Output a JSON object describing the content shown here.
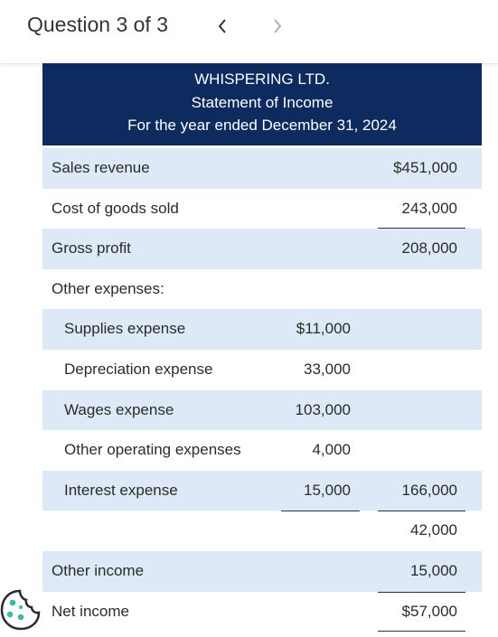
{
  "header": {
    "title": "Question 3 of 3",
    "prev_icon": "chevron-left-icon",
    "next_icon": "chevron-right-icon"
  },
  "statement": {
    "company": "WHISPERING LTD.",
    "name": "Statement of Income",
    "period": "For the year ended December 31, 2024",
    "rows": [
      {
        "label": "Sales revenue",
        "col1": "",
        "col2": "$451,000"
      },
      {
        "label": "Cost of goods sold",
        "col1": "",
        "col2": "243,000"
      },
      {
        "label": "Gross profit",
        "col1": "",
        "col2": "208,000"
      },
      {
        "label": "Other expenses:",
        "col1": "",
        "col2": ""
      },
      {
        "label": "Supplies expense",
        "col1": "$11,000",
        "col2": ""
      },
      {
        "label": "Depreciation expense",
        "col1": "33,000",
        "col2": ""
      },
      {
        "label": "Wages expense",
        "col1": "103,000",
        "col2": ""
      },
      {
        "label": "Other operating expenses",
        "col1": "4,000",
        "col2": ""
      },
      {
        "label": "Interest expense",
        "col1": "15,000",
        "col2": "166,000"
      },
      {
        "label": "",
        "col1": "",
        "col2": "42,000"
      },
      {
        "label": "Other income",
        "col1": "",
        "col2": "15,000"
      },
      {
        "label": "Net income",
        "col1": "",
        "col2": "$57,000"
      }
    ]
  },
  "colors": {
    "header_bg": "#0d2b5e",
    "row_shade": "#dde9f6"
  },
  "corner_icon": "cookie-icon"
}
